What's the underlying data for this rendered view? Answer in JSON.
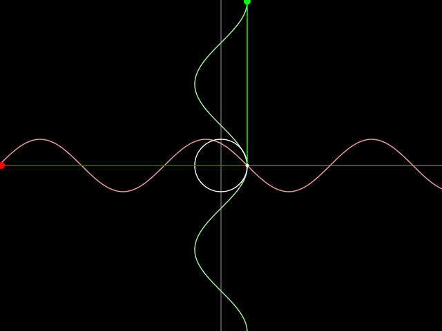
{
  "colors": {
    "background": "#000000",
    "axes": "#9a9a9a",
    "circle": "#ffffff",
    "sine_wave": "#e8a0a0",
    "cosine_wave": "#a8e8a0",
    "sine_projection": "#ff0000",
    "cosine_projection": "#00ff00",
    "sine_marker": "#ff0000",
    "cosine_marker": "#00ff00"
  },
  "diagram": {
    "angle_degrees": 0,
    "amplitude": 1,
    "period_degrees": 360
  }
}
